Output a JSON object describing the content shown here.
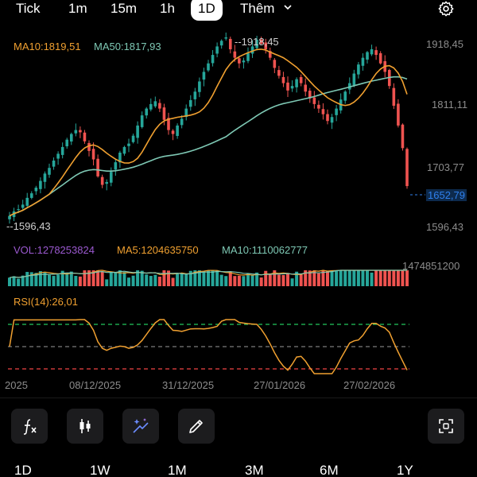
{
  "timeframes": [
    "Tick",
    "1m",
    "15m",
    "1h",
    "1D"
  ],
  "active_timeframe": "1D",
  "more_label": "Thêm",
  "ma_legend": {
    "ma10": "MA10:1819,51",
    "ma50": "MA50:1817,93"
  },
  "price_axis": {
    "high": "1918,45",
    "p2": "1811,11",
    "p3": "1703,77",
    "low": "1596,43",
    "current": "1652,79"
  },
  "max_marker": "1918,45",
  "min_marker": "1596,43",
  "vol_legend": {
    "vol": "VOL:1278253824",
    "ma5": "MA5:1204635750",
    "ma10": "MA10:1110062777",
    "axis_max": "1474851200"
  },
  "rsi_legend": "RSI(14):26,01",
  "x_axis": [
    "2025",
    "08/12/2025",
    "31/12/2025",
    "27/01/2026",
    "27/02/2026"
  ],
  "ranges": [
    "1D",
    "1W",
    "1M",
    "3M",
    "6M",
    "1Y"
  ],
  "tools": [
    "indicator-icon",
    "candle-type-icon",
    "ai-draw-icon",
    "pencil-icon",
    "fullscreen-icon"
  ],
  "colors": {
    "up": "#26a69a",
    "down": "#ef5350",
    "ma10": "#f0a030",
    "ma50": "#7ec8b4",
    "rsi": "#f0a030",
    "vol_label": "#9b59d0",
    "current_price": "#2f80ed"
  },
  "chart_data": {
    "type": "candlestick",
    "y_range": [
      1560,
      1940
    ],
    "closes": [
      1600,
      1608,
      1612,
      1620,
      1632,
      1640,
      1650,
      1662,
      1675,
      1685,
      1698,
      1710,
      1722,
      1735,
      1745,
      1752,
      1748,
      1732,
      1715,
      1700,
      1670,
      1655,
      1660,
      1678,
      1695,
      1712,
      1722,
      1728,
      1742,
      1760,
      1778,
      1790,
      1798,
      1803,
      1790,
      1770,
      1752,
      1745,
      1760,
      1772,
      1790,
      1805,
      1820,
      1838,
      1855,
      1870,
      1885,
      1900,
      1910,
      1916,
      1895,
      1880,
      1870,
      1875,
      1888,
      1900,
      1912,
      1905,
      1895,
      1880,
      1862,
      1848,
      1835,
      1822,
      1830,
      1842,
      1835,
      1820,
      1808,
      1798,
      1790,
      1780,
      1768,
      1775,
      1790,
      1806,
      1820,
      1835,
      1852,
      1868,
      1880,
      1890,
      1895,
      1885,
      1870,
      1855,
      1830,
      1795,
      1760,
      1720,
      1652.79
    ]
  }
}
